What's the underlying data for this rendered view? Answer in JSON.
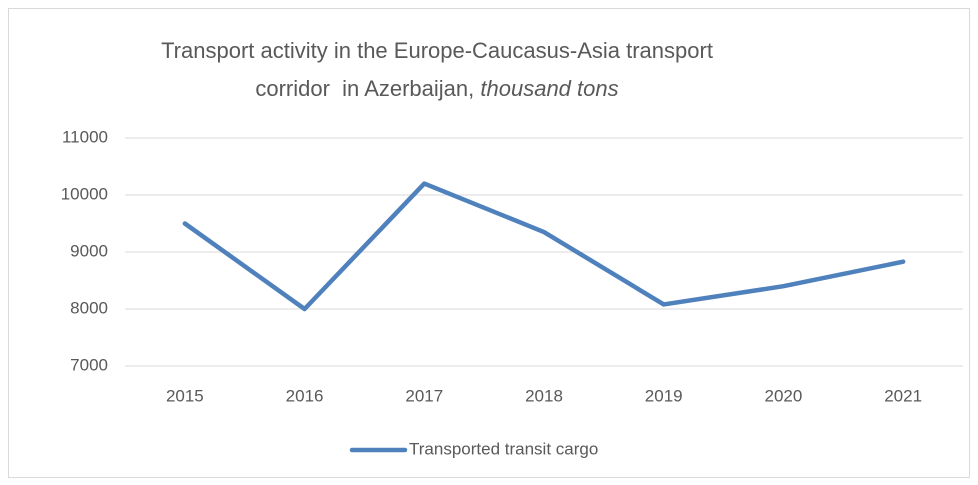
{
  "chart_data": {
    "type": "line",
    "title": "Transport activity in the Europe-Caucasus-Asia transport corridor  in Azerbaijan,",
    "title_unit": "thousand tons",
    "categories": [
      "2015",
      "2016",
      "2017",
      "2018",
      "2019",
      "2020",
      "2021"
    ],
    "series": [
      {
        "name": "Transported transit cargo",
        "color": "#4f81bd",
        "values": [
          9500,
          8000,
          10200,
          9350,
          8080,
          8400,
          8830
        ]
      }
    ],
    "ylim": [
      7000,
      11000
    ],
    "yticks": [
      7000,
      8000,
      9000,
      10000,
      11000
    ],
    "grid": true,
    "legend": "bottom"
  }
}
